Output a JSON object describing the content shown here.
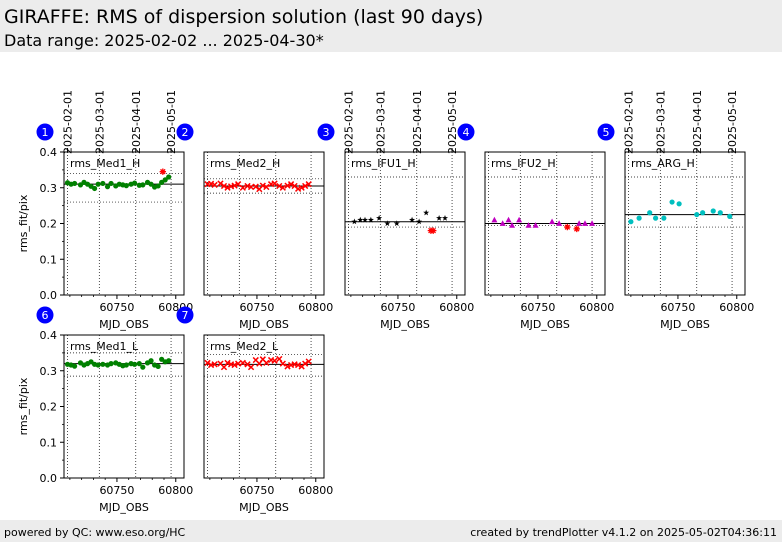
{
  "header": {
    "title": "GIRAFFE: RMS of dispersion solution (last 90 days)",
    "subtitle": "Data range: 2025-02-02 ... 2025-04-30*"
  },
  "footer": {
    "left": "powered by QC: www.eso.org/HC",
    "right": "created by trendPlotter v4.1.2 on 2025-05-02T04:36:11"
  },
  "colors": {
    "band": "#ececec",
    "green": "#008000",
    "red": "#ff0000",
    "black": "#000000",
    "magenta": "#bf00bf",
    "cyan": "#00bfbf",
    "badge": "#0000ff"
  },
  "chart_data": [
    {
      "type": "scatter",
      "panel": "1",
      "label": "rms_Med1_H",
      "xlabel": "MJD_OBS",
      "ylabel": "rms_fit/pix",
      "xlim": [
        60705,
        60807
      ],
      "ylim": [
        0,
        0.4
      ],
      "xticks": [
        60750,
        60800
      ],
      "yticks": [
        "0.0",
        "0.1",
        "0.2",
        "0.3",
        "0.4"
      ],
      "date_ticks": [
        {
          "mjd": 60708,
          "label": "2025-02-01"
        },
        {
          "mjd": 60735,
          "label": "2025-03-01"
        },
        {
          "mjd": 60766,
          "label": "2025-04-01"
        },
        {
          "mjd": 60796,
          "label": "2025-05-01"
        }
      ],
      "mean": 0.31,
      "limits": [
        0.34,
        0.26
      ],
      "marker": "circle",
      "color": "#008000",
      "x": [
        60708,
        60711,
        60714,
        60719,
        60722,
        60725,
        60728,
        60731,
        60734,
        60738,
        60742,
        60745,
        60749,
        60752,
        60755,
        60758,
        60762,
        60765,
        60769,
        60772,
        60776,
        60779,
        60782,
        60785,
        60788,
        60791,
        60794
      ],
      "y": [
        0.314,
        0.31,
        0.312,
        0.308,
        0.315,
        0.31,
        0.304,
        0.298,
        0.31,
        0.312,
        0.303,
        0.312,
        0.305,
        0.31,
        0.308,
        0.306,
        0.31,
        0.313,
        0.307,
        0.308,
        0.315,
        0.31,
        0.302,
        0.305,
        0.315,
        0.322,
        0.33
      ],
      "outliers": [
        {
          "x": 60789,
          "y": 0.345
        }
      ]
    },
    {
      "type": "scatter",
      "panel": "2",
      "label": "rms_Med2_H",
      "xlabel": "MJD_OBS",
      "ylabel": "",
      "xlim": [
        60705,
        60807
      ],
      "ylim": [
        0,
        0.4
      ],
      "xticks": [
        60750,
        60800
      ],
      "yticks": [],
      "date_ticks": [],
      "mean": 0.305,
      "limits": [
        0.325,
        0.285
      ],
      "marker": "x",
      "color": "#ff0000",
      "x": [
        60708,
        60711,
        60714,
        60719,
        60722,
        60725,
        60728,
        60731,
        60734,
        60738,
        60742,
        60745,
        60749,
        60752,
        60755,
        60758,
        60762,
        60765,
        60769,
        60772,
        60776,
        60779,
        60782,
        60785,
        60788,
        60791,
        60794
      ],
      "y": [
        0.31,
        0.311,
        0.308,
        0.312,
        0.305,
        0.3,
        0.304,
        0.306,
        0.31,
        0.3,
        0.305,
        0.302,
        0.303,
        0.296,
        0.306,
        0.302,
        0.31,
        0.312,
        0.305,
        0.3,
        0.306,
        0.31,
        0.305,
        0.297,
        0.3,
        0.305,
        0.31
      ],
      "outliers": []
    },
    {
      "type": "scatter",
      "panel": "3",
      "label": "rms_IFU1_H",
      "xlabel": "MJD_OBS",
      "ylabel": "",
      "xlim": [
        60705,
        60807
      ],
      "ylim": [
        0,
        0.4
      ],
      "xticks": [
        60750,
        60800
      ],
      "yticks": [],
      "date_ticks": [
        {
          "mjd": 60708,
          "label": "2025-02-01"
        },
        {
          "mjd": 60735,
          "label": "2025-03-01"
        },
        {
          "mjd": 60766,
          "label": "2025-04-01"
        },
        {
          "mjd": 60796,
          "label": "2025-05-01"
        }
      ],
      "mean": 0.205,
      "limits": [
        0.33,
        0.19
      ],
      "marker": "star",
      "color": "#000000",
      "x": [
        60713,
        60718,
        60722,
        60727,
        60734,
        60741,
        60749,
        60762,
        60768,
        60774,
        60785,
        60790
      ],
      "y": [
        0.205,
        0.21,
        0.21,
        0.21,
        0.215,
        0.2,
        0.2,
        0.21,
        0.205,
        0.23,
        0.215,
        0.215
      ],
      "outliers": [
        {
          "x": 60778,
          "y": 0.18
        },
        {
          "x": 60780,
          "y": 0.18
        }
      ]
    },
    {
      "type": "scatter",
      "panel": "4",
      "label": "rms_IFU2_H",
      "xlabel": "MJD_OBS",
      "ylabel": "",
      "xlim": [
        60705,
        60807
      ],
      "ylim": [
        0,
        0.4
      ],
      "xticks": [
        60750,
        60800
      ],
      "yticks": [],
      "date_ticks": [],
      "mean": 0.2,
      "limits": [
        0.33,
        0.195
      ],
      "marker": "triangle",
      "color": "#bf00bf",
      "x": [
        60713,
        60720,
        60725,
        60728,
        60734,
        60742,
        60748,
        60762,
        60768,
        60785,
        60790,
        60796
      ],
      "y": [
        0.21,
        0.2,
        0.21,
        0.195,
        0.21,
        0.195,
        0.195,
        0.205,
        0.2,
        0.2,
        0.2,
        0.2
      ],
      "outliers": [
        {
          "x": 60775,
          "y": 0.19
        },
        {
          "x": 60783,
          "y": 0.185
        }
      ]
    },
    {
      "type": "scatter",
      "panel": "5",
      "label": "rms_ARG_H",
      "xlabel": "MJD_OBS",
      "ylabel": "",
      "xlim": [
        60705,
        60807
      ],
      "ylim": [
        0,
        0.4
      ],
      "xticks": [
        60750,
        60800
      ],
      "yticks": [],
      "date_ticks": [
        {
          "mjd": 60708,
          "label": "2025-02-01"
        },
        {
          "mjd": 60735,
          "label": "2025-03-01"
        },
        {
          "mjd": 60766,
          "label": "2025-04-01"
        },
        {
          "mjd": 60796,
          "label": "2025-05-01"
        }
      ],
      "mean": 0.225,
      "limits": [
        0.33,
        0.19
      ],
      "marker": "circle",
      "color": "#00bfbf",
      "x": [
        60710,
        60717,
        60726,
        60731,
        60738,
        60745,
        60751,
        60766,
        60771,
        60780,
        60786,
        60794
      ],
      "y": [
        0.205,
        0.215,
        0.23,
        0.215,
        0.215,
        0.26,
        0.255,
        0.225,
        0.23,
        0.235,
        0.23,
        0.22
      ],
      "outliers": []
    },
    {
      "type": "scatter",
      "panel": "6",
      "label": "rms_Med1_L",
      "xlabel": "MJD_OBS",
      "ylabel": "rms_fit/pix",
      "xlim": [
        60705,
        60807
      ],
      "ylim": [
        0,
        0.4
      ],
      "xticks": [
        60750,
        60800
      ],
      "yticks": [
        "0.0",
        "0.1",
        "0.2",
        "0.3",
        "0.4"
      ],
      "date_ticks": [],
      "mean": 0.32,
      "limits": [
        0.35,
        0.285
      ],
      "marker": "circle",
      "color": "#008000",
      "x": [
        60708,
        60711,
        60714,
        60719,
        60722,
        60725,
        60728,
        60731,
        60734,
        60738,
        60742,
        60745,
        60749,
        60752,
        60755,
        60758,
        60762,
        60765,
        60769,
        60772,
        60776,
        60779,
        60782,
        60785,
        60788,
        60791,
        60794
      ],
      "y": [
        0.318,
        0.316,
        0.313,
        0.322,
        0.316,
        0.32,
        0.325,
        0.318,
        0.316,
        0.318,
        0.316,
        0.32,
        0.322,
        0.318,
        0.314,
        0.316,
        0.32,
        0.318,
        0.32,
        0.31,
        0.322,
        0.328,
        0.316,
        0.312,
        0.332,
        0.325,
        0.328
      ],
      "outliers": []
    },
    {
      "type": "scatter",
      "panel": "7",
      "label": "rms_Med2_L",
      "xlabel": "MJD_OBS",
      "ylabel": "",
      "xlim": [
        60705,
        60807
      ],
      "ylim": [
        0,
        0.4
      ],
      "xticks": [
        60750,
        60800
      ],
      "yticks": [],
      "date_ticks": [],
      "mean": 0.318,
      "limits": [
        0.345,
        0.285
      ],
      "marker": "x",
      "color": "#ff0000",
      "x": [
        60708,
        60711,
        60714,
        60719,
        60722,
        60725,
        60728,
        60731,
        60734,
        60738,
        60742,
        60745,
        60749,
        60752,
        60755,
        60758,
        60762,
        60765,
        60769,
        60772,
        60776,
        60779,
        60782,
        60785,
        60788,
        60791,
        60794
      ],
      "y": [
        0.322,
        0.316,
        0.318,
        0.32,
        0.31,
        0.322,
        0.318,
        0.316,
        0.32,
        0.322,
        0.318,
        0.31,
        0.33,
        0.32,
        0.332,
        0.322,
        0.33,
        0.328,
        0.333,
        0.32,
        0.312,
        0.316,
        0.318,
        0.316,
        0.312,
        0.32,
        0.326
      ],
      "outliers": []
    }
  ]
}
